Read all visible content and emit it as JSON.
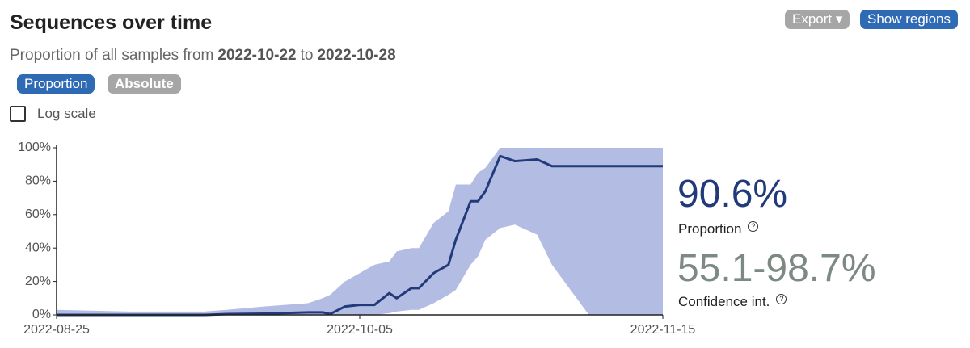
{
  "header": {
    "title": "Sequences over time",
    "subtitle": {
      "prefix": "Proportion of all samples from",
      "start": "2022-10-22",
      "joiner": "to",
      "end": "2022-10-28"
    }
  },
  "buttons": {
    "export": "Export",
    "regions": "Show regions"
  },
  "tabs": {
    "proportion": "Proportion",
    "absolute": "Absolute"
  },
  "log_checkbox": "Log scale",
  "summary": {
    "proportion": "90.6%",
    "ci": "55.1-98.7%"
  },
  "chart_data": {
    "type": "line",
    "log_scale": false,
    "grid": false,
    "x": [
      "2022-08-25",
      "2022-09-04",
      "2022-09-14",
      "2022-09-17",
      "2022-09-22",
      "2022-09-28",
      "2022-09-30",
      "2022-10-01",
      "2022-10-03",
      "2022-10-05",
      "2022-10-07",
      "2022-10-09",
      "2022-10-10",
      "2022-10-12",
      "2022-10-13",
      "2022-10-15",
      "2022-10-17",
      "2022-10-18",
      "2022-10-20",
      "2022-10-21",
      "2022-10-22",
      "2022-10-24",
      "2022-10-26",
      "2022-10-29",
      "2022-10-31",
      "2022-11-05",
      "2022-11-10",
      "2022-11-15"
    ],
    "series": [
      {
        "name": "Proportion",
        "color": "#233a7a",
        "values": [
          0,
          0,
          0,
          0.5,
          0.7,
          1.5,
          1.5,
          0.5,
          5,
          6,
          6,
          13,
          10,
          16,
          16,
          25,
          30,
          45,
          68,
          68,
          74,
          95,
          92,
          93,
          89,
          89,
          89,
          89
        ]
      },
      {
        "name": "Confidence int.",
        "color": "#b3bce3",
        "upper": [
          3,
          2,
          2,
          3,
          5,
          7,
          10,
          12,
          20,
          25,
          30,
          32,
          38,
          40,
          40,
          55,
          62,
          78,
          78,
          85,
          88,
          100,
          100,
          100,
          100,
          100,
          100,
          100
        ],
        "lower": [
          0,
          0,
          0,
          0,
          0,
          0,
          0,
          0,
          0,
          0,
          0,
          1,
          2,
          3,
          3,
          7,
          12,
          15,
          30,
          35,
          45,
          52,
          54,
          48,
          30,
          0,
          0,
          0
        ]
      }
    ],
    "xlim": [
      "2022-08-25",
      "2022-11-15"
    ],
    "xticks": [
      "2022-08-25",
      "2022-10-05",
      "2022-11-15"
    ],
    "ylim": [
      0,
      100
    ],
    "yticks": [
      {
        "value": 0,
        "label": "0%"
      },
      {
        "value": 20,
        "label": "20%"
      },
      {
        "value": 40,
        "label": "40%"
      },
      {
        "value": 60,
        "label": "60%"
      },
      {
        "value": 80,
        "label": "80%"
      },
      {
        "value": 100,
        "label": "100%"
      }
    ]
  }
}
